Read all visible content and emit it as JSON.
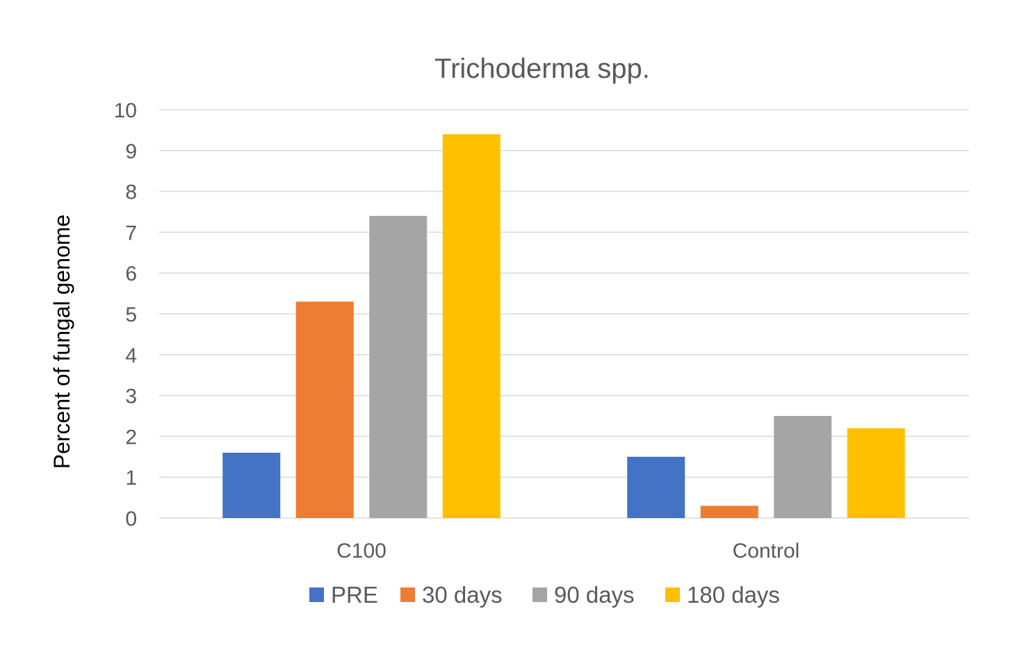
{
  "chart_data": {
    "type": "bar",
    "title": "Trichoderma spp.",
    "xlabel": "",
    "ylabel": "Percent of fungal genome",
    "categories": [
      "C100",
      "Control"
    ],
    "series": [
      {
        "name": "PRE",
        "color": "#4472C4",
        "values": [
          1.6,
          1.5
        ]
      },
      {
        "name": "30 days",
        "color": "#ED7D31",
        "values": [
          5.3,
          0.3
        ]
      },
      {
        "name": "90 days",
        "color": "#A5A5A5",
        "values": [
          7.4,
          2.5
        ]
      },
      {
        "name": "180 days",
        "color": "#FFC000",
        "values": [
          9.4,
          2.2
        ]
      }
    ],
    "ylim": [
      0,
      10
    ],
    "yticks": [
      "0",
      "1",
      "2",
      "3",
      "4",
      "5",
      "6",
      "7",
      "8",
      "9",
      "10"
    ],
    "grid": true,
    "legend_position": "bottom"
  }
}
